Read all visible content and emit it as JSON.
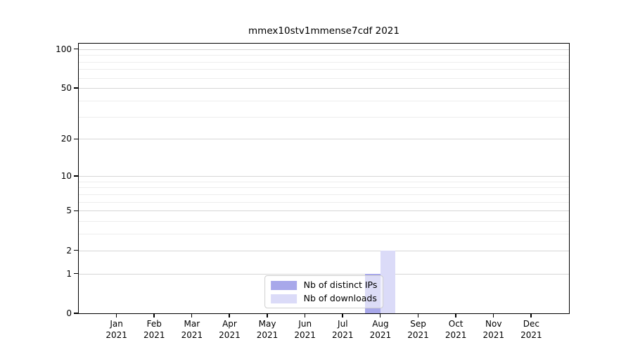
{
  "title": "mmex10stv1mmense7cdf 2021",
  "chart_data": {
    "type": "bar",
    "title": "mmex10stv1mmense7cdf 2021",
    "x_categories": [
      "Jan 2021",
      "Feb 2021",
      "Mar 2021",
      "Apr 2021",
      "May 2021",
      "Jun 2021",
      "Jul 2021",
      "Aug 2021",
      "Sep 2021",
      "Oct 2021",
      "Nov 2021",
      "Dec 2021"
    ],
    "series": [
      {
        "name": "Nb of distinct IPs",
        "color": "#a8a8ea",
        "values": [
          0,
          0,
          0,
          0,
          0,
          0,
          0,
          1,
          0,
          0,
          0,
          0
        ]
      },
      {
        "name": "Nb of downloads",
        "color": "#dbdbf8",
        "values": [
          0,
          0,
          0,
          0,
          0,
          0,
          0,
          2,
          0,
          0,
          0,
          0
        ]
      }
    ],
    "xlabel": "",
    "ylabel": "",
    "yscale": "log1p",
    "ylim": [
      0,
      110
    ],
    "yticks_major": [
      0,
      1,
      2,
      5,
      10,
      20,
      50,
      100
    ],
    "yticks_minor": [
      3,
      4,
      6,
      7,
      8,
      9,
      30,
      40,
      60,
      70,
      80,
      90
    ],
    "bar_width_fraction": 0.4,
    "grid": "horizontal major and minor gridlines",
    "legend_position": "lower center"
  },
  "colors": {
    "bar_distinct_ips": "#a8a8ea",
    "bar_downloads": "#dbdbf8",
    "major_grid": "#d6d6d6",
    "minor_grid": "#ededed",
    "axis": "#000000",
    "legend_border": "#cfcfcf"
  }
}
